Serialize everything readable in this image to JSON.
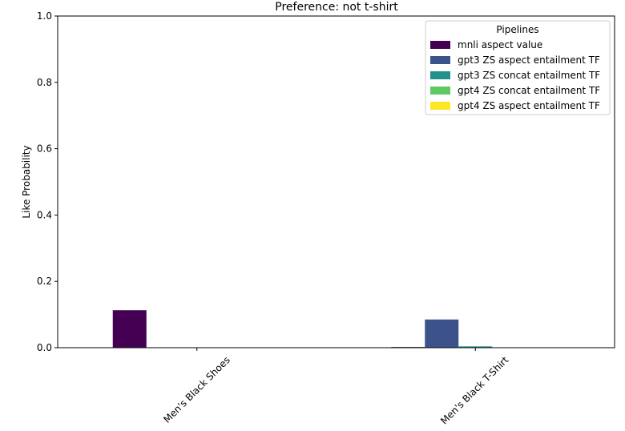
{
  "chart_data": {
    "type": "bar",
    "title": "Preference: not t-shirt",
    "xlabel": "",
    "ylabel": "Like Probability",
    "ylim": [
      0,
      1.0
    ],
    "yticks": [
      0.0,
      0.2,
      0.4,
      0.6,
      0.8,
      1.0
    ],
    "grid": false,
    "categories": [
      "Men's Black Shoes",
      "Men's Black T-Shirt"
    ],
    "legend": {
      "title": "Pipelines",
      "placement": "top-right"
    },
    "series": [
      {
        "name": "mnli aspect value",
        "color": "#440154",
        "values": [
          0.113,
          0.002
        ]
      },
      {
        "name": "gpt3 ZS aspect entailment TF",
        "color": "#3b528b",
        "values": [
          0.0,
          0.085
        ]
      },
      {
        "name": "gpt3 ZS concat entailment TF",
        "color": "#21918c",
        "values": [
          0.0,
          0.004
        ]
      },
      {
        "name": "gpt4 ZS concat entailment TF",
        "color": "#5ec962",
        "values": [
          0.0,
          0.0
        ]
      },
      {
        "name": "gpt4 ZS aspect entailment TF",
        "color": "#fde725",
        "values": [
          0.0,
          0.0
        ]
      }
    ]
  }
}
